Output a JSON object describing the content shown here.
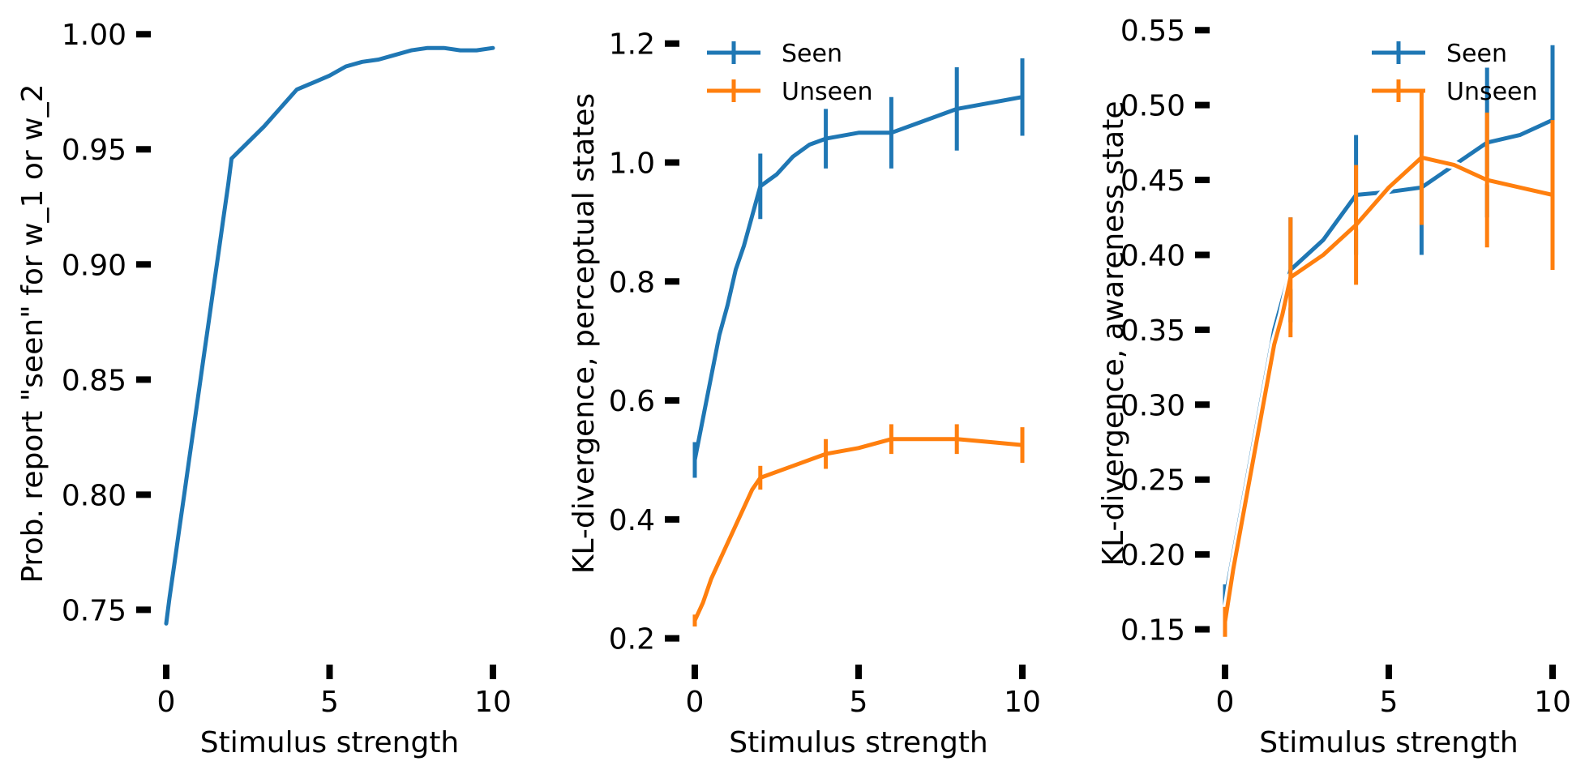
{
  "chart_data": [
    {
      "type": "line",
      "xlabel": "Stimulus strength",
      "ylabel": "Prob. report \"seen\" for w_1 or w_2",
      "xlim": [
        0,
        10
      ],
      "ylim": [
        0.735,
        1.005
      ],
      "xticks": [
        0,
        5,
        10
      ],
      "yticks": [
        0.75,
        0.8,
        0.85,
        0.9,
        0.95,
        1.0
      ],
      "xtick_labels": [
        "0",
        "5",
        "10"
      ],
      "ytick_labels": [
        "0.75",
        "0.80",
        "0.85",
        "0.90",
        "0.95",
        "1.00"
      ],
      "grid": false,
      "series": [
        {
          "color": "#1f77b4",
          "x": [
            0,
            0.1,
            0.25,
            0.4,
            0.55,
            0.7,
            0.85,
            1.0,
            1.15,
            1.3,
            1.45,
            1.6,
            1.75,
            1.9,
            2.0,
            2.5,
            3.0,
            3.5,
            4.0,
            4.5,
            5.0,
            5.5,
            6.0,
            6.5,
            7.0,
            7.5,
            8.0,
            8.5,
            9.0,
            9.5,
            10.0
          ],
          "y": [
            0.744,
            0.755,
            0.77,
            0.785,
            0.8,
            0.815,
            0.83,
            0.845,
            0.86,
            0.875,
            0.89,
            0.905,
            0.92,
            0.935,
            0.946,
            0.953,
            0.96,
            0.968,
            0.976,
            0.979,
            0.982,
            0.986,
            0.988,
            0.989,
            0.991,
            0.993,
            0.994,
            0.994,
            0.993,
            0.993,
            0.994
          ]
        }
      ]
    },
    {
      "type": "line",
      "xlabel": "Stimulus strength",
      "ylabel": "KL-divergence, perceptual states",
      "xlim": [
        0,
        10
      ],
      "ylim": [
        0.19,
        1.235
      ],
      "xticks": [
        0,
        5,
        10
      ],
      "yticks": [
        0.2,
        0.4,
        0.6,
        0.8,
        1.0,
        1.2
      ],
      "xtick_labels": [
        "0",
        "5",
        "10"
      ],
      "ytick_labels": [
        "0.2",
        "0.4",
        "0.6",
        "0.8",
        "1.0",
        "1.2"
      ],
      "grid": false,
      "legend": {
        "position": "top-left",
        "entries": [
          "Seen",
          "Unseen"
        ]
      },
      "series": [
        {
          "name": "Seen",
          "color": "#1f77b4",
          "x": [
            0,
            0.25,
            0.5,
            0.75,
            1.0,
            1.25,
            1.5,
            1.75,
            2.0,
            2.5,
            3.0,
            3.5,
            4.0,
            5.0,
            6.0,
            7.0,
            8.0,
            9.0,
            10.0
          ],
          "y": [
            0.5,
            0.57,
            0.64,
            0.71,
            0.76,
            0.82,
            0.86,
            0.91,
            0.96,
            0.98,
            1.01,
            1.03,
            1.04,
            1.05,
            1.05,
            1.07,
            1.09,
            1.1,
            1.11
          ],
          "errorbars": [
            {
              "x": 0,
              "y": 0.5,
              "err": 0.03
            },
            {
              "x": 2,
              "y": 0.96,
              "err": 0.055
            },
            {
              "x": 4,
              "y": 1.04,
              "err": 0.05
            },
            {
              "x": 6,
              "y": 1.05,
              "err": 0.06
            },
            {
              "x": 8,
              "y": 1.09,
              "err": 0.07
            },
            {
              "x": 10,
              "y": 1.11,
              "err": 0.065
            }
          ]
        },
        {
          "name": "Unseen",
          "color": "#ff7f0e",
          "x": [
            0,
            0.25,
            0.5,
            0.75,
            1.0,
            1.25,
            1.5,
            1.75,
            2.0,
            3.0,
            4.0,
            5.0,
            6.0,
            7.0,
            8.0,
            9.0,
            10.0
          ],
          "y": [
            0.23,
            0.26,
            0.3,
            0.33,
            0.36,
            0.39,
            0.42,
            0.45,
            0.47,
            0.49,
            0.51,
            0.52,
            0.535,
            0.535,
            0.535,
            0.53,
            0.525
          ],
          "errorbars": [
            {
              "x": 0,
              "y": 0.23,
              "err": 0.01
            },
            {
              "x": 2,
              "y": 0.47,
              "err": 0.02
            },
            {
              "x": 4,
              "y": 0.51,
              "err": 0.025
            },
            {
              "x": 6,
              "y": 0.535,
              "err": 0.025
            },
            {
              "x": 8,
              "y": 0.535,
              "err": 0.025
            },
            {
              "x": 10,
              "y": 0.525,
              "err": 0.03
            }
          ]
        }
      ]
    },
    {
      "type": "line",
      "xlabel": "Stimulus strength",
      "ylabel": "KL-divergence, awareness state",
      "xlim": [
        0,
        10
      ],
      "ylim": [
        0.14,
        0.555
      ],
      "xticks": [
        0,
        5,
        10
      ],
      "yticks": [
        0.15,
        0.2,
        0.25,
        0.3,
        0.35,
        0.4,
        0.45,
        0.5,
        0.55
      ],
      "xtick_labels": [
        "0",
        "5",
        "10"
      ],
      "ytick_labels": [
        "0.15",
        "0.20",
        "0.25",
        "0.30",
        "0.35",
        "0.40",
        "0.45",
        "0.50",
        "0.55"
      ],
      "grid": false,
      "legend": {
        "position": "top-right",
        "entries": [
          "Seen",
          "Unseen"
        ]
      },
      "series": [
        {
          "name": "Seen",
          "color": "#1f77b4",
          "x": [
            0,
            0.25,
            0.5,
            0.75,
            1.0,
            1.25,
            1.5,
            1.75,
            2.0,
            3.0,
            4.0,
            5.0,
            6.0,
            7.0,
            8.0,
            9.0,
            10.0
          ],
          "y": [
            0.17,
            0.2,
            0.23,
            0.26,
            0.29,
            0.32,
            0.35,
            0.37,
            0.39,
            0.41,
            0.44,
            0.442,
            0.445,
            0.46,
            0.475,
            0.48,
            0.49
          ],
          "errorbars": [
            {
              "x": 0,
              "y": 0.17,
              "err": 0.01
            },
            {
              "x": 2,
              "y": 0.39,
              "err": 0.035
            },
            {
              "x": 4,
              "y": 0.44,
              "err": 0.04
            },
            {
              "x": 6,
              "y": 0.445,
              "err": 0.045
            },
            {
              "x": 8,
              "y": 0.475,
              "err": 0.05
            },
            {
              "x": 10,
              "y": 0.49,
              "err": 0.05
            }
          ]
        },
        {
          "name": "Unseen",
          "color": "#ff7f0e",
          "x": [
            0,
            0.25,
            0.5,
            0.75,
            1.0,
            1.25,
            1.5,
            1.75,
            2.0,
            3.0,
            4.0,
            5.0,
            6.0,
            7.0,
            8.0,
            9.0,
            10.0
          ],
          "y": [
            0.155,
            0.19,
            0.22,
            0.25,
            0.28,
            0.31,
            0.34,
            0.36,
            0.385,
            0.4,
            0.42,
            0.445,
            0.465,
            0.46,
            0.45,
            0.445,
            0.44
          ],
          "errorbars": [
            {
              "x": 0,
              "y": 0.155,
              "err": 0.01
            },
            {
              "x": 2,
              "y": 0.385,
              "err": 0.04
            },
            {
              "x": 4,
              "y": 0.42,
              "err": 0.04
            },
            {
              "x": 6,
              "y": 0.465,
              "err": 0.045
            },
            {
              "x": 8,
              "y": 0.45,
              "err": 0.045
            },
            {
              "x": 10,
              "y": 0.44,
              "err": 0.05
            }
          ]
        }
      ]
    }
  ]
}
